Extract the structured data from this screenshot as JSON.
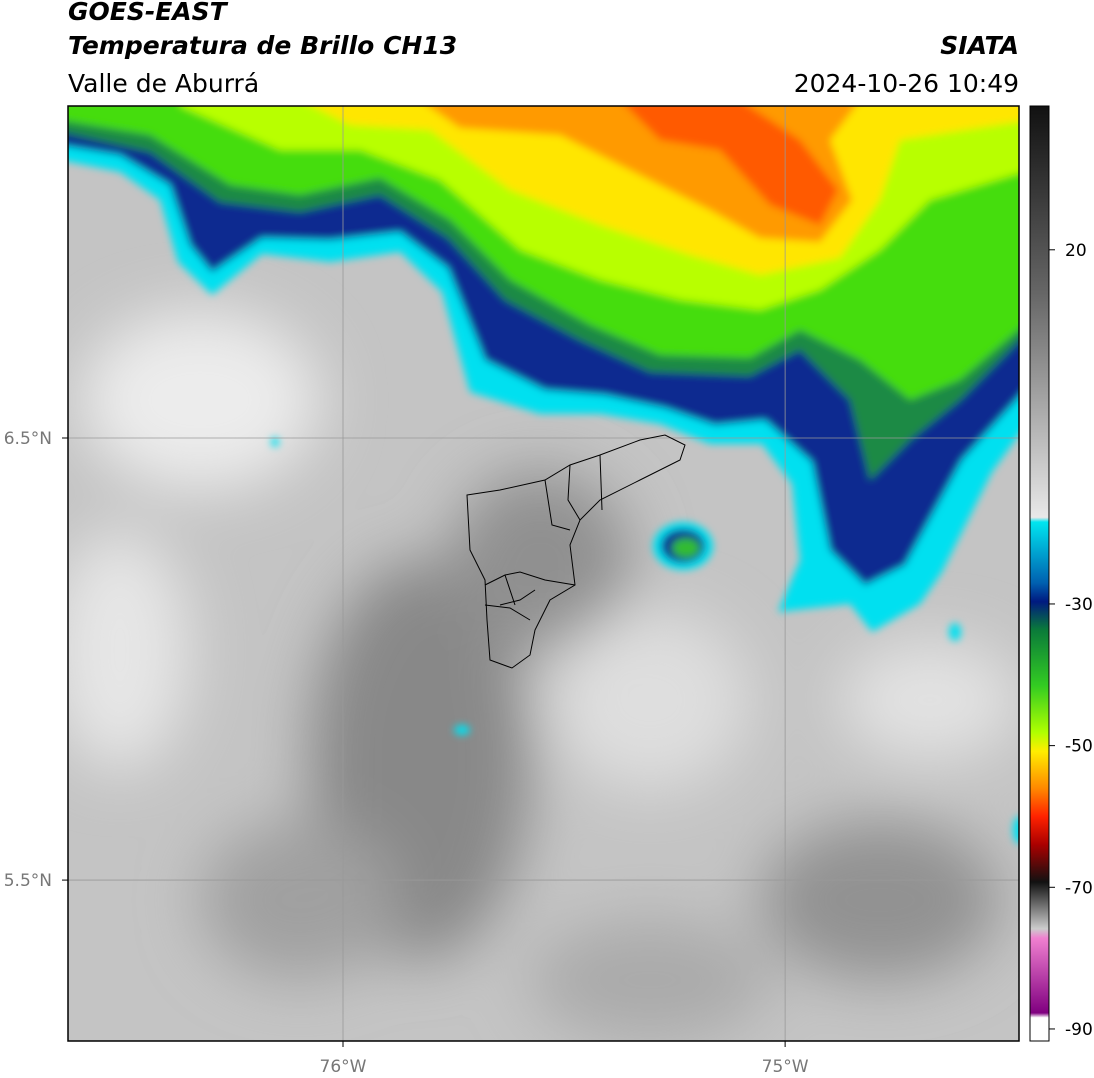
{
  "header": {
    "title": "GOES-EAST",
    "subtitle": "Temperatura de Brillo CH13",
    "region": "Valle de Aburrá",
    "source": "SIATA",
    "timestamp": "2024-10-26 10:49"
  },
  "map": {
    "xlim": [
      -76.622,
      -74.471
    ],
    "ylim": [
      5.136,
      7.251
    ],
    "xticks": [
      {
        "value": -76,
        "label": "76°W"
      },
      {
        "value": -75,
        "label": "75°W"
      }
    ],
    "yticks": [
      {
        "value": 6.5,
        "label": "6.5°N"
      },
      {
        "value": 5.5,
        "label": "5.5°N"
      }
    ],
    "grid": true
  },
  "colorbar": {
    "lim": [
      -91.7,
      40.3
    ],
    "ticks": [
      20,
      -30,
      -50,
      -70,
      -90
    ]
  }
}
